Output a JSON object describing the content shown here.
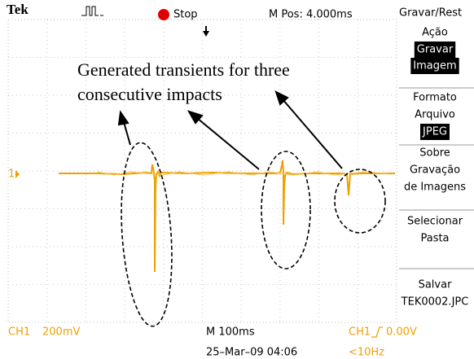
{
  "header": {
    "brand": "Tek",
    "status": "Stop",
    "position": "M Pos: 4.000ms",
    "menu_title": "Gravar/Rest"
  },
  "menu": [
    {
      "label": [
        "Ação"
      ],
      "value": [
        "Gravar",
        "Imagem"
      ]
    },
    {
      "label": [
        "Formato",
        "Arquivo"
      ],
      "value": [
        "JPEG"
      ]
    },
    {
      "label": [
        "Sobre",
        "Gravação",
        "de Imagens"
      ]
    },
    {
      "label": [
        "Selecionar",
        "Pasta"
      ]
    },
    {
      "label": [
        "Salvar",
        "TEK0002.JPC"
      ]
    }
  ],
  "annotation": {
    "lines": [
      "Generated transients for three",
      "consecutive impacts"
    ]
  },
  "channel_marker": "1",
  "footer": {
    "channel": "CH1",
    "scale": "200mV",
    "timebase": "M 100ms",
    "date": "25–Mar–09 04:06",
    "trigger_channel": "CH1",
    "trigger_level": "0.00V",
    "frequency": "<10Hz"
  }
}
